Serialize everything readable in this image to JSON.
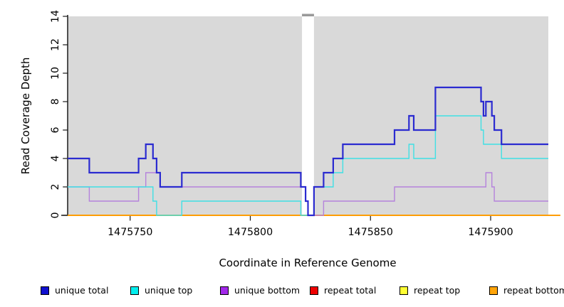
{
  "chart_data": {
    "type": "line",
    "subtype": "step-coverage",
    "title": "",
    "xlabel": "Coordinate in Reference Genome",
    "ylabel": "Read Coverage Depth",
    "xlim": [
      1475724,
      1475924
    ],
    "ylim": [
      0,
      14
    ],
    "x_ticks": [
      1475750,
      1475800,
      1475850,
      1475900
    ],
    "y_ticks": [
      0,
      2,
      4,
      6,
      8,
      10,
      12,
      14
    ],
    "grid": false,
    "legend_position": "bottom",
    "plot_bg_color": "#d9d9d9",
    "axis_color": "#1a1a1a",
    "tick_label_color": "#000000",
    "masked_gap_x": [
      1475821.5,
      1475826.5
    ],
    "masked_gap_marker_color": "#999999",
    "series": [
      {
        "name": "repeat total",
        "slug": "repeat-total",
        "color": "#dd0000",
        "width": 1.4,
        "x_end": 1475924,
        "steps": [
          [
            1475724,
            0
          ]
        ]
      },
      {
        "name": "repeat top",
        "slug": "repeat-top",
        "color": "#ffff00",
        "width": 1.4,
        "x_end": 1475924,
        "steps": [
          [
            1475724,
            0
          ]
        ]
      },
      {
        "name": "repeat bottom",
        "slug": "repeat-bottom",
        "color": "#ff9d00",
        "width": 2.0,
        "x_end": 1475929,
        "steps": [
          [
            1475724,
            0
          ]
        ]
      },
      {
        "name": "unique bottom",
        "slug": "unique-bottom",
        "color": "#b583dc",
        "width": 1.4,
        "x_end": 1475924,
        "steps": [
          [
            1475724,
            2
          ],
          [
            1475733,
            1
          ],
          [
            1475753.5,
            2
          ],
          [
            1475756.5,
            3
          ],
          [
            1475762.5,
            2
          ],
          [
            1475823,
            1
          ],
          [
            1475824,
            0
          ],
          [
            1475830.5,
            1
          ],
          [
            1475860,
            2
          ],
          [
            1475898,
            3
          ],
          [
            1475900.5,
            2
          ],
          [
            1475901.5,
            1
          ]
        ]
      },
      {
        "name": "unique top",
        "slug": "unique-top",
        "color": "#3fe0e4",
        "width": 1.4,
        "x_end": 1475924,
        "steps": [
          [
            1475724,
            2
          ],
          [
            1475759.5,
            1
          ],
          [
            1475761,
            0
          ],
          [
            1475771.5,
            1
          ],
          [
            1475821,
            0
          ],
          [
            1475826.5,
            2
          ],
          [
            1475834.5,
            3
          ],
          [
            1475838.5,
            4
          ],
          [
            1475866,
            5
          ],
          [
            1475868,
            4
          ],
          [
            1475877,
            7
          ],
          [
            1475896,
            6
          ],
          [
            1475897,
            5
          ],
          [
            1475904.5,
            4
          ]
        ]
      },
      {
        "name": "unique total",
        "slug": "unique-total",
        "color": "#2b2bd0",
        "width": 2.2,
        "x_end": 1475924,
        "steps": [
          [
            1475724,
            4
          ],
          [
            1475733,
            3
          ],
          [
            1475753.5,
            4
          ],
          [
            1475756.5,
            5
          ],
          [
            1475759.5,
            4
          ],
          [
            1475761,
            3
          ],
          [
            1475762.5,
            2
          ],
          [
            1475771.5,
            3
          ],
          [
            1475821,
            2
          ],
          [
            1475823,
            1
          ],
          [
            1475824,
            0
          ],
          [
            1475826.5,
            2
          ],
          [
            1475830.5,
            3
          ],
          [
            1475834.5,
            4
          ],
          [
            1475838.5,
            5
          ],
          [
            1475860,
            6
          ],
          [
            1475866,
            7
          ],
          [
            1475868,
            6
          ],
          [
            1475877,
            9
          ],
          [
            1475896,
            8
          ],
          [
            1475897,
            7
          ],
          [
            1475898,
            8
          ],
          [
            1475900.5,
            7
          ],
          [
            1475901.5,
            6
          ],
          [
            1475904.5,
            5
          ]
        ]
      }
    ],
    "legend": [
      {
        "label": "unique total",
        "slug": "unique-total",
        "color": "#1010cf"
      },
      {
        "label": "unique top",
        "slug": "unique-top",
        "color": "#00eeee"
      },
      {
        "label": "unique bottom",
        "slug": "unique-bottom",
        "color": "#a228ea"
      },
      {
        "label": "repeat total",
        "slug": "repeat-total",
        "color": "#ee0000"
      },
      {
        "label": "repeat top",
        "slug": "repeat-top",
        "color": "#ffff33"
      },
      {
        "label": "repeat bottom",
        "slug": "repeat-bottom",
        "color": "#ffa408"
      }
    ]
  }
}
